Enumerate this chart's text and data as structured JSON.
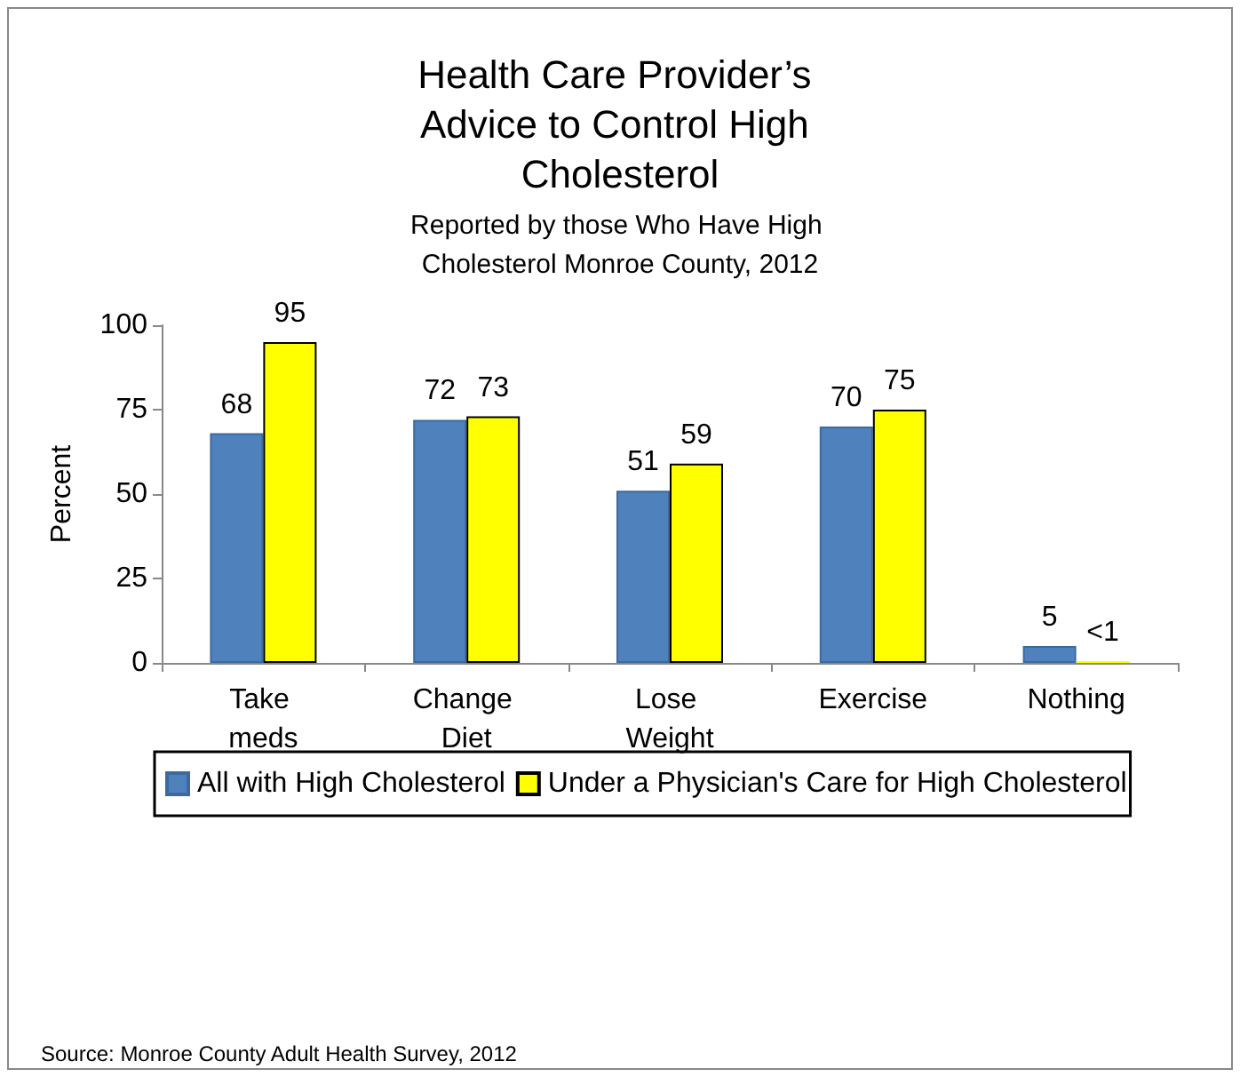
{
  "chart_data": {
    "type": "bar",
    "title": "Health Care Provider’s Advice to Control High Cholesterol",
    "subtitle": "Reported by those Who Have High Cholesterol Monroe County, 2012",
    "ylabel": "Percent",
    "categories": [
      "Take meds",
      "Change Diet",
      "Lose Weight",
      "Exercise",
      "Nothing"
    ],
    "series": [
      {
        "name": "All with High Cholesterol",
        "color": "#4f81bd",
        "values": [
          68,
          72,
          51,
          70,
          5
        ],
        "value_labels": [
          "68",
          "72",
          "51",
          "70",
          "5"
        ]
      },
      {
        "name": "Under a Physician's Care for High Cholesterol",
        "color": "#ffff00",
        "values": [
          95,
          73,
          59,
          75,
          0.5
        ],
        "value_labels": [
          "95",
          "73",
          "59",
          "75",
          "<1"
        ]
      }
    ],
    "ylim": [
      0,
      100
    ],
    "yticks": [
      0,
      25,
      50,
      75,
      100
    ],
    "grid": false,
    "legend": "bottom",
    "annotations": [
      "Source: Monroe County Adult Health Survey, 2012"
    ]
  }
}
